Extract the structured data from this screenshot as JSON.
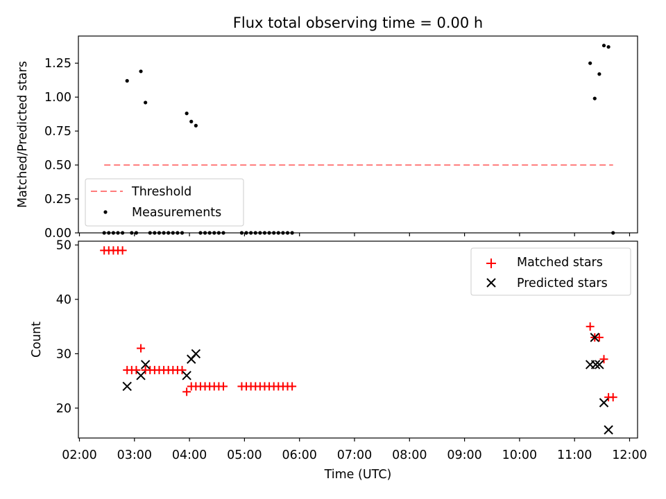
{
  "chart_data": [
    {
      "type": "scatter",
      "title": "Flux total observing time = 0.00 h",
      "xlabel": "",
      "ylabel": "Matched/Predicted stars",
      "xlim": [
        "02:00",
        "12:10"
      ],
      "ylim": [
        0,
        1.45
      ],
      "yticks": [
        "0.00",
        "0.25",
        "0.50",
        "0.75",
        "1.00",
        "1.25"
      ],
      "grid": false,
      "legend": "lower-left",
      "threshold": {
        "name": "Threshold",
        "y": 0.5,
        "x_start": "02:27",
        "x_end": "11:42",
        "color": "#ff7b7b",
        "style": "dashed"
      },
      "series": [
        {
          "name": "Measurements",
          "color": "#000000",
          "marker": "dot",
          "points": [
            [
              "02:27",
              0
            ],
            [
              "02:32",
              0
            ],
            [
              "02:37",
              0
            ],
            [
              "02:42",
              0
            ],
            [
              "02:47",
              0
            ],
            [
              "02:52",
              1.12
            ],
            [
              "02:57",
              0
            ],
            [
              "03:02",
              0
            ],
            [
              "03:07",
              1.19
            ],
            [
              "03:12",
              0.96
            ],
            [
              "03:17",
              0
            ],
            [
              "03:22",
              0
            ],
            [
              "03:27",
              0
            ],
            [
              "03:32",
              0
            ],
            [
              "03:37",
              0
            ],
            [
              "03:42",
              0
            ],
            [
              "03:47",
              0
            ],
            [
              "03:52",
              0
            ],
            [
              "03:57",
              0.88
            ],
            [
              "04:02",
              0.82
            ],
            [
              "04:07",
              0.79
            ],
            [
              "04:12",
              0
            ],
            [
              "04:17",
              0
            ],
            [
              "04:22",
              0
            ],
            [
              "04:27",
              0
            ],
            [
              "04:32",
              0
            ],
            [
              "04:37",
              0
            ],
            [
              "04:57",
              0
            ],
            [
              "05:02",
              0
            ],
            [
              "05:07",
              0
            ],
            [
              "05:12",
              0
            ],
            [
              "05:17",
              0
            ],
            [
              "05:22",
              0
            ],
            [
              "05:27",
              0
            ],
            [
              "05:32",
              0
            ],
            [
              "05:37",
              0
            ],
            [
              "05:42",
              0
            ],
            [
              "05:47",
              0
            ],
            [
              "05:52",
              0
            ],
            [
              "11:17",
              1.25
            ],
            [
              "11:22",
              0.99
            ],
            [
              "11:27",
              1.17
            ],
            [
              "11:32",
              1.38
            ],
            [
              "11:37",
              1.37
            ],
            [
              "11:42",
              0
            ]
          ]
        }
      ]
    },
    {
      "type": "scatter",
      "title": "",
      "xlabel": "Time (UTC)",
      "ylabel": "Count",
      "xlim": [
        "02:00",
        "12:10"
      ],
      "ylim": [
        14.5,
        50.7
      ],
      "xticks": [
        "02:00",
        "03:00",
        "04:00",
        "05:00",
        "06:00",
        "07:00",
        "08:00",
        "09:00",
        "10:00",
        "11:00",
        "12:00"
      ],
      "yticks": [
        "20",
        "30",
        "40",
        "50"
      ],
      "grid": false,
      "legend": "upper-right",
      "series": [
        {
          "name": "Matched stars",
          "color": "#ff0000",
          "marker": "plus",
          "points": [
            [
              "02:27",
              49
            ],
            [
              "02:32",
              49
            ],
            [
              "02:37",
              49
            ],
            [
              "02:42",
              49
            ],
            [
              "02:47",
              49
            ],
            [
              "02:52",
              27
            ],
            [
              "02:57",
              27
            ],
            [
              "03:02",
              27
            ],
            [
              "03:07",
              31
            ],
            [
              "03:12",
              27
            ],
            [
              "03:17",
              27
            ],
            [
              "03:22",
              27
            ],
            [
              "03:27",
              27
            ],
            [
              "03:32",
              27
            ],
            [
              "03:37",
              27
            ],
            [
              "03:42",
              27
            ],
            [
              "03:47",
              27
            ],
            [
              "03:52",
              27
            ],
            [
              "03:57",
              23
            ],
            [
              "04:02",
              24
            ],
            [
              "04:07",
              24
            ],
            [
              "04:12",
              24
            ],
            [
              "04:17",
              24
            ],
            [
              "04:22",
              24
            ],
            [
              "04:27",
              24
            ],
            [
              "04:32",
              24
            ],
            [
              "04:37",
              24
            ],
            [
              "04:57",
              24
            ],
            [
              "05:02",
              24
            ],
            [
              "05:07",
              24
            ],
            [
              "05:12",
              24
            ],
            [
              "05:17",
              24
            ],
            [
              "05:22",
              24
            ],
            [
              "05:27",
              24
            ],
            [
              "05:32",
              24
            ],
            [
              "05:37",
              24
            ],
            [
              "05:42",
              24
            ],
            [
              "05:47",
              24
            ],
            [
              "05:52",
              24
            ],
            [
              "11:17",
              35
            ],
            [
              "11:22",
              33
            ],
            [
              "11:27",
              33
            ],
            [
              "11:32",
              29
            ],
            [
              "11:37",
              22
            ],
            [
              "11:42",
              22
            ]
          ]
        },
        {
          "name": "Predicted stars",
          "color": "#000000",
          "marker": "x",
          "points": [
            [
              "02:52",
              24
            ],
            [
              "03:07",
              26
            ],
            [
              "03:12",
              28
            ],
            [
              "03:57",
              26
            ],
            [
              "04:02",
              29
            ],
            [
              "04:07",
              30
            ],
            [
              "11:17",
              28
            ],
            [
              "11:22",
              33
            ],
            [
              "11:23",
              28
            ],
            [
              "11:27",
              28
            ],
            [
              "11:32",
              21
            ],
            [
              "11:37",
              16
            ]
          ]
        }
      ]
    }
  ]
}
